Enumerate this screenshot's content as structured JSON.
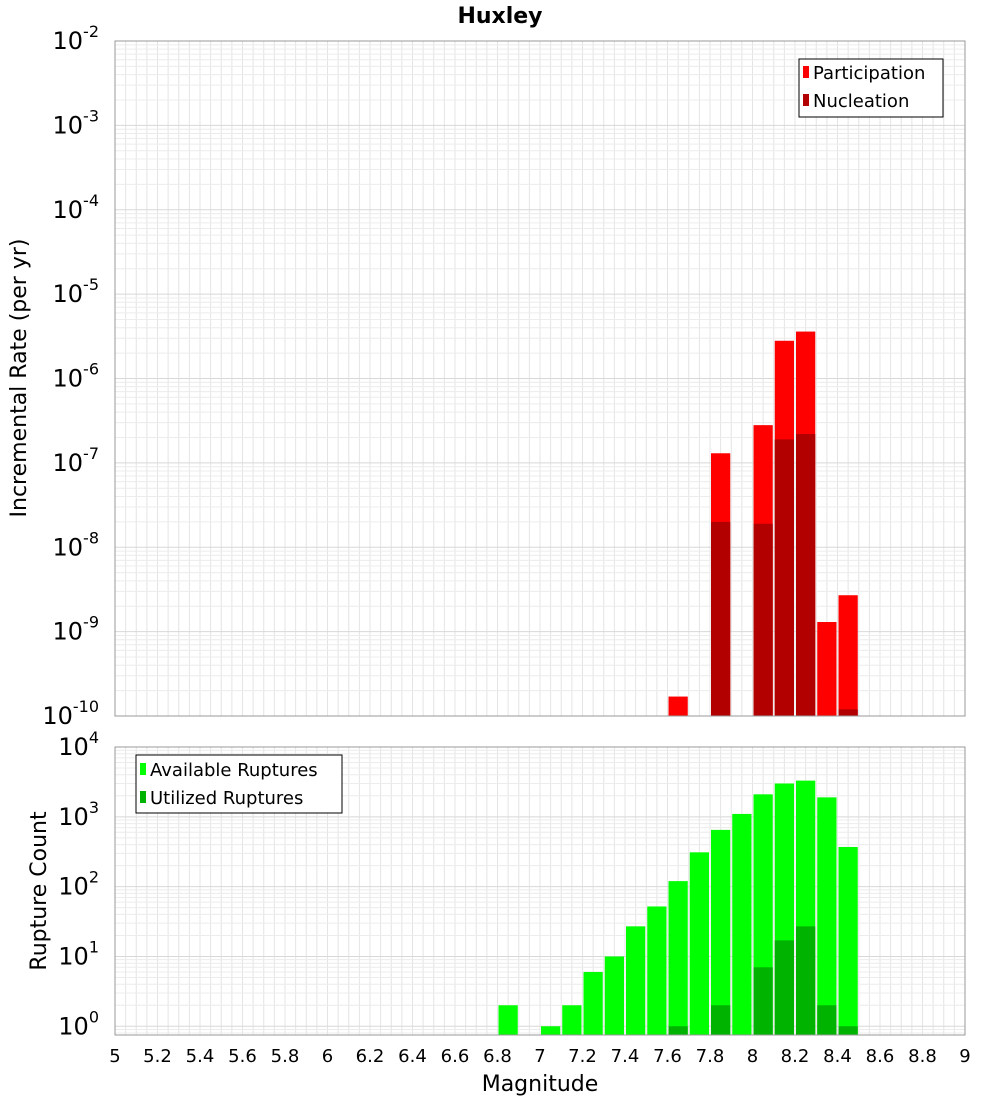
{
  "chart_data": {
    "title": "Huxley",
    "type": "bar",
    "xlabel": "Magnitude",
    "x_ticks": [
      "5",
      "5.2",
      "5.4",
      "5.6",
      "5.8",
      "6",
      "6.2",
      "6.4",
      "6.6",
      "6.8",
      "7",
      "7.2",
      "7.4",
      "7.6",
      "7.8",
      "8",
      "8.2",
      "8.4",
      "8.6",
      "8.8",
      "9"
    ],
    "xlim": [
      5,
      9
    ],
    "bin_width": 0.1,
    "panels": [
      {
        "ylabel": "Incremental Rate (per yr)",
        "yscale": "log",
        "ylim": [
          1e-10,
          0.01
        ],
        "y_ticks": [
          {
            "base": "10",
            "exp": "-2"
          },
          {
            "base": "10",
            "exp": "-3"
          },
          {
            "base": "10",
            "exp": "-4"
          },
          {
            "base": "10",
            "exp": "-5"
          },
          {
            "base": "10",
            "exp": "-6"
          },
          {
            "base": "10",
            "exp": "-7"
          },
          {
            "base": "10",
            "exp": "-8"
          },
          {
            "base": "10",
            "exp": "-9"
          },
          {
            "base": "10",
            "exp": "-10"
          }
        ],
        "legend_position": "top-right",
        "series": [
          {
            "name": "Participation",
            "color": "#ff0000",
            "points": [
              [
                7.65,
                1.7e-10
              ],
              [
                7.85,
                1.3e-07
              ],
              [
                8.05,
                2.8e-07
              ],
              [
                8.15,
                2.8e-06
              ],
              [
                8.25,
                3.6e-06
              ],
              [
                8.35,
                1.3e-09
              ],
              [
                8.45,
                2.7e-09
              ]
            ]
          },
          {
            "name": "Nucleation",
            "color": "#b20000",
            "points": [
              [
                7.85,
                2e-08
              ],
              [
                8.05,
                1.9e-08
              ],
              [
                8.15,
                1.9e-07
              ],
              [
                8.25,
                2.2e-07
              ],
              [
                8.45,
                1.2e-10
              ]
            ]
          }
        ]
      },
      {
        "ylabel": "Rupture Count",
        "yscale": "log",
        "ylim": [
          0.75,
          10000
        ],
        "y_ticks": [
          {
            "base": "10",
            "exp": "4"
          },
          {
            "base": "10",
            "exp": "3"
          },
          {
            "base": "10",
            "exp": "2"
          },
          {
            "base": "10",
            "exp": "1"
          },
          {
            "base": "10",
            "exp": "0"
          }
        ],
        "legend_position": "top-left",
        "series": [
          {
            "name": "Available Ruptures",
            "color": "#00ff00",
            "points": [
              [
                6.85,
                2
              ],
              [
                7.05,
                1
              ],
              [
                7.15,
                2
              ],
              [
                7.25,
                6
              ],
              [
                7.35,
                10
              ],
              [
                7.45,
                27
              ],
              [
                7.55,
                52
              ],
              [
                7.65,
                120
              ],
              [
                7.75,
                310
              ],
              [
                7.85,
                650
              ],
              [
                7.95,
                1100
              ],
              [
                8.05,
                2100
              ],
              [
                8.15,
                3000
              ],
              [
                8.25,
                3300
              ],
              [
                8.35,
                1900
              ],
              [
                8.45,
                370
              ]
            ]
          },
          {
            "name": "Utilized Ruptures",
            "color": "#00b300",
            "points": [
              [
                7.65,
                1
              ],
              [
                7.85,
                2
              ],
              [
                8.05,
                7
              ],
              [
                8.15,
                17
              ],
              [
                8.25,
                27
              ],
              [
                8.35,
                2
              ],
              [
                8.45,
                1
              ]
            ]
          }
        ]
      }
    ]
  }
}
